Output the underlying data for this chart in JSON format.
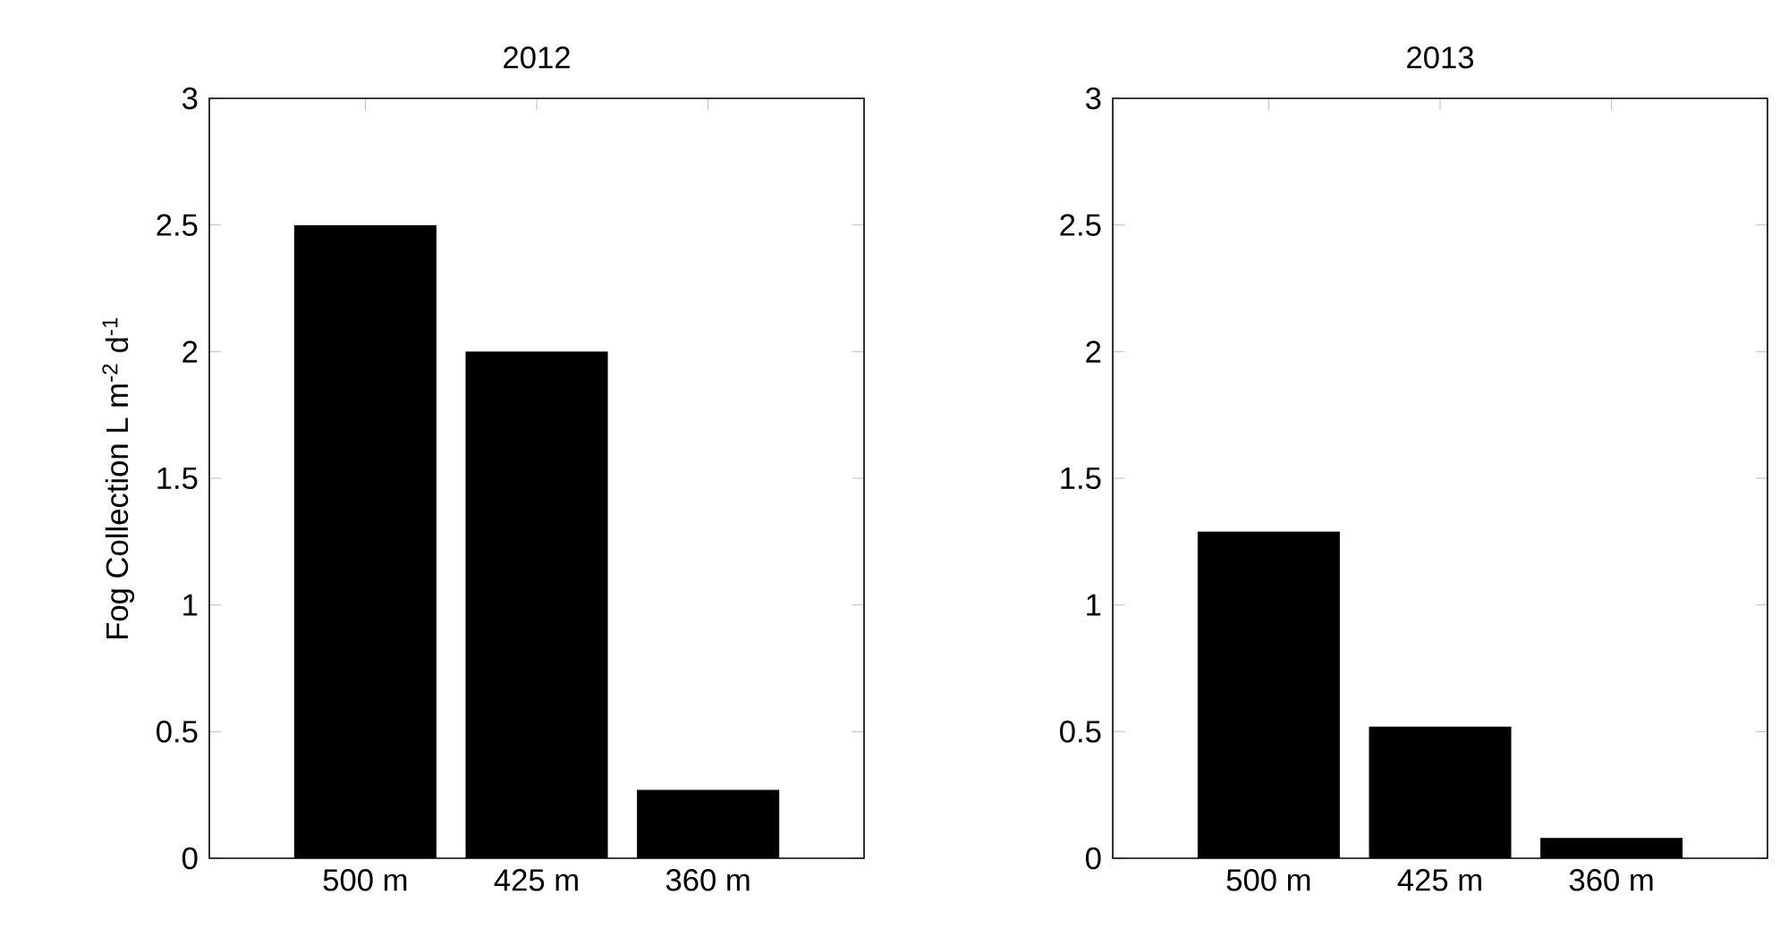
{
  "chart_data": [
    {
      "type": "bar",
      "title": "2012",
      "ylabel": "Fog Collection L m$^{-2}$ d$^{-1}$",
      "categories": [
        "500 m",
        "425 m",
        "360 m"
      ],
      "values": [
        2.5,
        2.0,
        0.27
      ],
      "color": "#000000",
      "ylim": [
        0,
        3
      ],
      "yticks": [
        0,
        0.5,
        1,
        1.5,
        2,
        2.5,
        3
      ]
    },
    {
      "type": "bar",
      "title": "2013",
      "categories": [
        "500 m",
        "425 m",
        "360 m"
      ],
      "values": [
        1.29,
        0.52,
        0.08
      ],
      "color": "#000000",
      "ylim": [
        0,
        3
      ],
      "yticks": [
        0,
        0.5,
        1,
        1.5,
        2,
        2.5,
        3
      ]
    }
  ]
}
